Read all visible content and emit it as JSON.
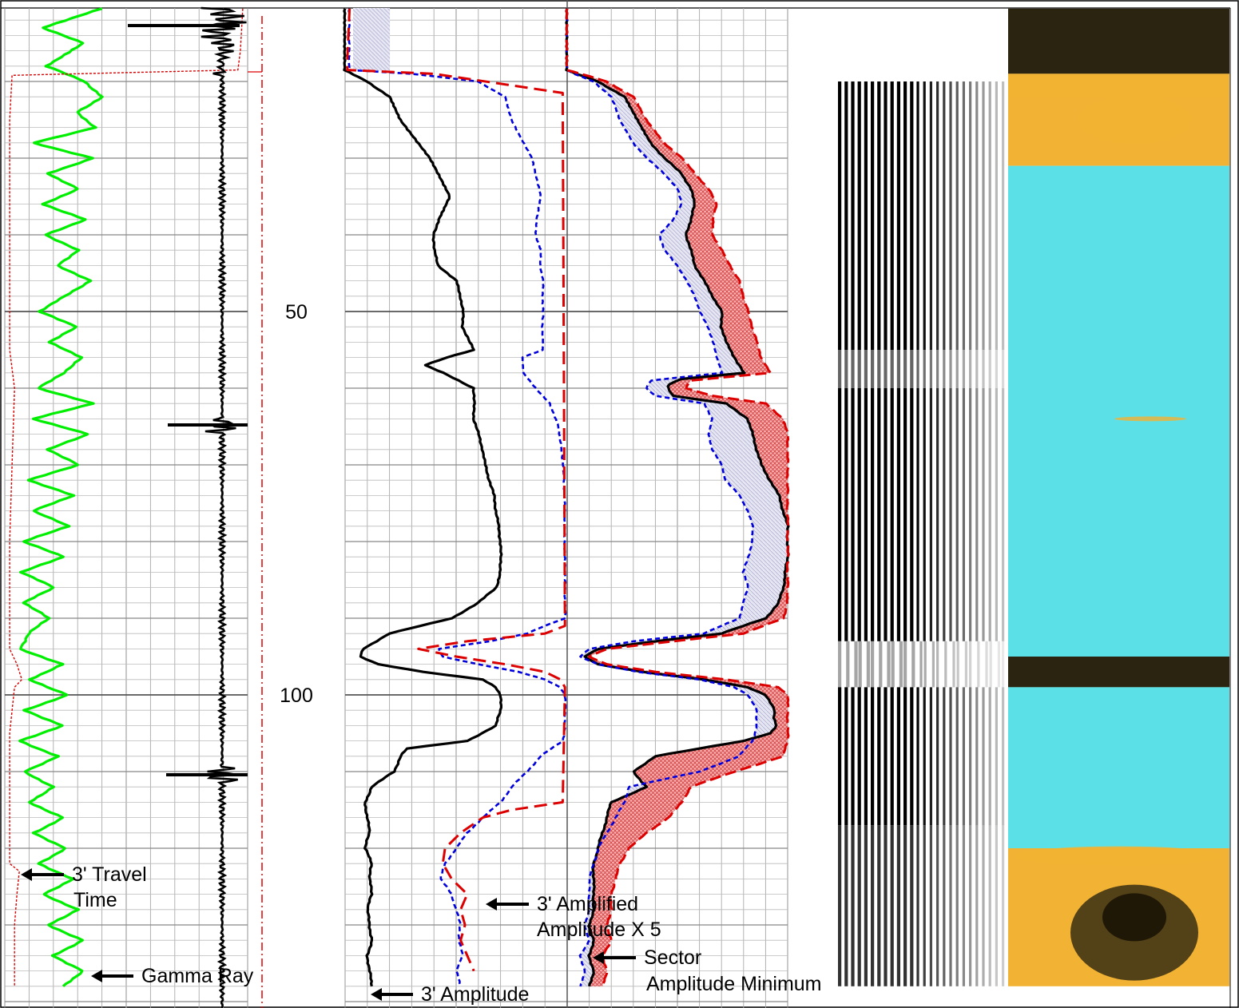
{
  "chart_data": {
    "type": "line",
    "depth_labels": [
      {
        "value": 50,
        "text": "50"
      },
      {
        "value": 100,
        "text": "100"
      }
    ],
    "depth_range": [
      10.5,
      138
    ],
    "annotations": {
      "travel_time": [
        "3' Travel",
        "Time"
      ],
      "gamma_ray": "Gamma Ray",
      "amplified": [
        "3' Amplified",
        "Amplitude X 5"
      ],
      "sector": [
        "Sector",
        "Amplitude Minimum"
      ],
      "amplitude": "3' Amplitude"
    },
    "series": [
      {
        "name": "Gamma Ray",
        "color": "#00ee00",
        "track": 1,
        "x_range": [
          0,
          100
        ],
        "depth": [
          10.5,
          13,
          15,
          18,
          20,
          22,
          24,
          26,
          28,
          30,
          32,
          34,
          36,
          38,
          40,
          42,
          44,
          46,
          48,
          50,
          52,
          54,
          56,
          58,
          60,
          62,
          64,
          66,
          68,
          70,
          72,
          74,
          76,
          78,
          80,
          82,
          84,
          86,
          88,
          90,
          92,
          94,
          96,
          98,
          100,
          102,
          104,
          106,
          108,
          110,
          112,
          114,
          116,
          118,
          120,
          122,
          124,
          126,
          128,
          130,
          132,
          134,
          136,
          138
        ],
        "value": [
          40,
          16,
          32,
          17,
          33,
          40,
          30,
          37,
          12,
          36,
          18,
          30,
          16,
          33,
          17,
          30,
          22,
          35,
          25,
          14,
          30,
          18,
          32,
          24,
          14,
          36,
          12,
          34,
          18,
          30,
          10,
          28,
          12,
          26,
          8,
          24,
          7,
          20,
          8,
          18,
          10,
          6,
          24,
          10,
          26,
          8,
          24,
          6,
          22,
          8,
          20,
          10,
          24,
          12,
          25,
          14,
          28,
          16,
          30,
          18,
          32,
          20,
          32,
          24
        ]
      },
      {
        "name": "3' Travel Time",
        "color": "#dd0000",
        "track": 1,
        "x_range": [
          0,
          100
        ],
        "depth": [
          10.5,
          16,
          18.5,
          19.2,
          25,
          40,
          55,
          60,
          70,
          80,
          90,
          94,
          96,
          98,
          99,
          105,
          110,
          118,
          122,
          123,
          126,
          130,
          135,
          138
        ],
        "value": [
          98,
          97,
          96,
          3,
          2,
          2,
          2,
          4,
          3,
          2,
          2,
          2,
          5,
          7,
          4,
          2,
          2,
          2,
          2,
          6,
          5,
          4,
          4,
          4
        ]
      },
      {
        "name": "3' Amplitude",
        "color": "#000000",
        "track": 2,
        "x_range": [
          0,
          100
        ],
        "depth": [
          10.5,
          18.5,
          20,
          22,
          25,
          30,
          35,
          38,
          40,
          42,
          44,
          46,
          48,
          50,
          52,
          54,
          55,
          56,
          57,
          58,
          60,
          62,
          64,
          66,
          68,
          70,
          72,
          74,
          76,
          78,
          80,
          82,
          84,
          86,
          88,
          90,
          92,
          94,
          95,
          96,
          97,
          98,
          99,
          100,
          101,
          102,
          104,
          106,
          107,
          108,
          110,
          112,
          114,
          116,
          118,
          120,
          122,
          124,
          126,
          128,
          130,
          132,
          134,
          136,
          138
        ],
        "value": [
          0,
          0,
          10,
          20,
          25,
          38,
          47,
          42,
          40,
          40,
          42,
          50,
          52,
          53,
          53,
          56,
          58,
          46,
          36,
          44,
          58,
          58,
          58,
          60,
          62,
          63,
          65,
          67,
          68,
          69,
          70,
          70,
          70,
          68,
          60,
          48,
          20,
          8,
          7,
          15,
          35,
          62,
          68,
          70,
          70,
          70,
          68,
          55,
          28,
          25,
          22,
          12,
          9,
          10,
          11,
          9,
          12,
          11,
          12,
          10,
          11,
          12,
          10,
          11,
          12
        ]
      },
      {
        "name": "3' Amplified Amplitude X 5",
        "color": "#0000dd",
        "track": 2,
        "x_range": [
          0,
          100
        ],
        "depth": [
          10.5,
          18.5,
          19,
          20,
          22,
          25,
          30,
          35,
          38,
          40,
          42,
          44,
          46,
          48,
          50,
          52,
          54,
          55,
          56,
          58,
          60,
          62,
          65,
          70,
          75,
          80,
          85,
          88,
          90,
          91,
          92,
          93,
          94,
          95,
          96,
          97,
          98,
          99,
          100,
          102,
          104,
          106,
          108,
          110,
          112,
          114,
          116,
          118,
          120,
          122,
          124,
          126,
          128,
          130,
          132,
          134,
          136,
          138
        ],
        "value": [
          2,
          2,
          30,
          60,
          72,
          75,
          84,
          88,
          86,
          86,
          88,
          88,
          89,
          89,
          89,
          89,
          89,
          89,
          80,
          80,
          86,
          92,
          96,
          98,
          99,
          99,
          99,
          99,
          99,
          90,
          82,
          65,
          42,
          44,
          60,
          78,
          90,
          97,
          99,
          99,
          99,
          98,
          88,
          82,
          75,
          70,
          62,
          55,
          50,
          45,
          43,
          48,
          50,
          52,
          51,
          53,
          50,
          52
        ]
      },
      {
        "name": "3' Amplified Amplitude X 5 (edit)",
        "color": "#dd0000",
        "track": 2,
        "x_range": [
          0,
          100
        ],
        "depth": [
          10.5,
          17,
          18.5,
          19,
          21.5,
          91,
          92,
          93,
          94,
          95,
          96,
          97,
          98,
          99,
          114,
          115,
          116,
          118,
          120,
          122,
          124,
          126,
          128,
          130,
          132,
          134,
          136
        ],
        "value": [
          2,
          1,
          1,
          40,
          98,
          99,
          90,
          55,
          33,
          50,
          72,
          90,
          97,
          99,
          98,
          75,
          62,
          52,
          45,
          44,
          48,
          55,
          52,
          54,
          52,
          55,
          58
        ]
      },
      {
        "name": "Sector Amplitude Minimum",
        "color": "#000000",
        "track": 3,
        "x_range": [
          0,
          100
        ],
        "depth": [
          10.5,
          18.5,
          19,
          20,
          22,
          25,
          28,
          30,
          32,
          34,
          36,
          38,
          40,
          42,
          44,
          46,
          48,
          50,
          52,
          54,
          56,
          58,
          58.8,
          59.5,
          60,
          61,
          62,
          64,
          66,
          68,
          70,
          72,
          74,
          76,
          78,
          80,
          82,
          84,
          86,
          88,
          90,
          92,
          93,
          94,
          95,
          96,
          97,
          98,
          99,
          100,
          101,
          102,
          103,
          104,
          105,
          106,
          108,
          110,
          112,
          114,
          116,
          118,
          120,
          122,
          124,
          126,
          128,
          130,
          132,
          134,
          136,
          138
        ],
        "value": [
          0,
          0,
          4,
          14,
          26,
          32,
          38,
          44,
          52,
          56,
          58,
          56,
          54,
          56,
          58,
          62,
          66,
          70,
          70,
          72,
          76,
          80,
          52,
          46,
          46,
          48,
          72,
          82,
          84,
          86,
          88,
          92,
          96,
          98,
          100,
          100,
          100,
          99,
          98,
          96,
          90,
          70,
          40,
          14,
          8,
          14,
          34,
          62,
          82,
          90,
          92,
          94,
          94,
          95,
          92,
          80,
          40,
          30,
          36,
          20,
          18,
          16,
          14,
          12,
          12,
          12,
          12,
          10,
          12,
          10,
          12,
          10,
          10
        ]
      },
      {
        "name": "Sector Amplitude Minimum (left)",
        "color": "#0000dd",
        "track": 3,
        "x_range": [
          0,
          100
        ],
        "depth": [
          10.5,
          18.5,
          19,
          20,
          22,
          25,
          28,
          30,
          32,
          34,
          36,
          38,
          40,
          42,
          44,
          46,
          48,
          50,
          52,
          54,
          56,
          58,
          59,
          60,
          61,
          62,
          64,
          66,
          68,
          70,
          72,
          74,
          76,
          78,
          80,
          82,
          84,
          86,
          88,
          90,
          92,
          93,
          94,
          95,
          96,
          97,
          98,
          99,
          100,
          101,
          102,
          104,
          106,
          108,
          110,
          112,
          114,
          116,
          118,
          120,
          122,
          124,
          126,
          128,
          130,
          132,
          134,
          136,
          138
        ],
        "value": [
          0,
          0,
          3,
          12,
          20,
          24,
          30,
          36,
          44,
          50,
          52,
          48,
          42,
          44,
          50,
          54,
          58,
          60,
          64,
          66,
          68,
          70,
          38,
          36,
          40,
          62,
          66,
          64,
          66,
          70,
          72,
          78,
          82,
          84,
          84,
          82,
          80,
          82,
          80,
          78,
          62,
          30,
          10,
          6,
          14,
          32,
          60,
          76,
          82,
          84,
          86,
          86,
          84,
          78,
          60,
          28,
          26,
          22,
          18,
          14,
          12,
          10,
          10,
          10,
          8,
          10,
          6,
          8,
          6
        ]
      },
      {
        "name": "Sector Amplitude Minimum (right)",
        "color": "#dd0000",
        "track": 3,
        "x_range": [
          0,
          100
        ],
        "depth": [
          10.5,
          18.5,
          19,
          20,
          22,
          25,
          28,
          30,
          32,
          34,
          36,
          38,
          40,
          42,
          44,
          46,
          48,
          50,
          52,
          54,
          56,
          58,
          59,
          60,
          61,
          62,
          64,
          66,
          68,
          70,
          72,
          74,
          76,
          78,
          80,
          82,
          84,
          86,
          88,
          90,
          92,
          93,
          94,
          95,
          96,
          97,
          98,
          99,
          100,
          101,
          102,
          104,
          106,
          108,
          110,
          112,
          114,
          116,
          118,
          120,
          122,
          124,
          126,
          128,
          130,
          132,
          134,
          136,
          138
        ],
        "value": [
          0,
          0,
          6,
          18,
          30,
          36,
          44,
          52,
          58,
          64,
          68,
          66,
          66,
          70,
          74,
          78,
          80,
          82,
          84,
          86,
          88,
          92,
          56,
          54,
          66,
          90,
          98,
          100,
          100,
          100,
          100,
          100,
          100,
          100,
          100,
          100,
          100,
          100,
          100,
          98,
          80,
          48,
          18,
          10,
          18,
          40,
          72,
          96,
          100,
          100,
          100,
          100,
          100,
          98,
          76,
          56,
          52,
          46,
          36,
          28,
          24,
          22,
          20,
          20,
          18,
          20,
          16,
          18,
          16
        ]
      }
    ],
    "vdl_image": {
      "depth_range": [
        20,
        138
      ],
      "bands": [
        {
          "from": 20,
          "to": 55,
          "contrast": "strong"
        },
        {
          "from": 55,
          "to": 60,
          "contrast": "mixed"
        },
        {
          "from": 60,
          "to": 93,
          "contrast": "strong"
        },
        {
          "from": 93,
          "to": 99,
          "contrast": "washed"
        },
        {
          "from": 99,
          "to": 117,
          "contrast": "strong"
        },
        {
          "from": 117,
          "to": 138,
          "contrast": "medium"
        }
      ]
    },
    "bond_image": {
      "depth_range": [
        10.5,
        138
      ],
      "colors": {
        "bonded": "#5ce0e8",
        "partial": "#f2b233",
        "free": "#2a2410"
      },
      "zones": [
        {
          "from": 10.5,
          "to": 19,
          "type": "free"
        },
        {
          "from": 19,
          "to": 31,
          "type": "partial"
        },
        {
          "from": 31,
          "to": 95,
          "type": "bonded"
        },
        {
          "from": 95,
          "to": 99,
          "type": "free"
        },
        {
          "from": 99,
          "to": 120,
          "type": "bonded"
        },
        {
          "from": 120,
          "to": 138,
          "type": "partial"
        }
      ]
    }
  }
}
